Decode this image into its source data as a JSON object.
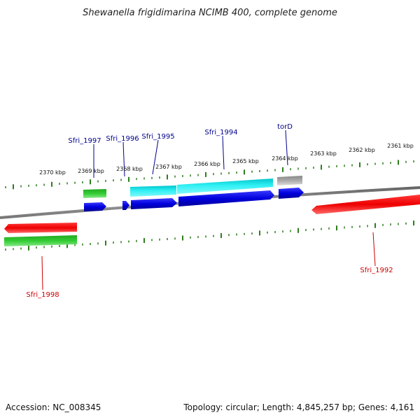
{
  "title": "Shewanella frigidimarina NCIMB 400, complete genome",
  "ticks": [
    {
      "label": "2370 kbp"
    },
    {
      "label": "2369 kbp"
    },
    {
      "label": "2368 kbp"
    },
    {
      "label": "2367 kbp"
    },
    {
      "label": "2366 kbp"
    },
    {
      "label": "2365 kbp"
    },
    {
      "label": "2364 kbp"
    },
    {
      "label": "2363 kbp"
    },
    {
      "label": "2362 kbp"
    },
    {
      "label": "2361 kbp"
    }
  ],
  "genes": [
    {
      "name": "Sfri_1997",
      "color": "#00008b"
    },
    {
      "name": "Sfri_1996",
      "color": "#00008b"
    },
    {
      "name": "Sfri_1995",
      "color": "#00008b"
    },
    {
      "name": "Sfri_1994",
      "color": "#00008b"
    },
    {
      "name": "torD",
      "color": "#00008b"
    },
    {
      "name": "Sfri_1998",
      "color": "#cc0000"
    },
    {
      "name": "Sfri_1992",
      "color": "#cc0000"
    }
  ],
  "colors": {
    "backbone": "#808080",
    "tick": "#2e7d1e",
    "forward_cds": "#0000dd",
    "reverse_cds": "#ee0000",
    "rna": "#00d0d8",
    "green_feature": "#22bb22",
    "gray_feature": "#a8a8a8"
  },
  "footer": {
    "accession": "Accession: NC_008345",
    "topology": "Topology: circular; Length: 4,845,257 bp; Genes: 4,161"
  }
}
